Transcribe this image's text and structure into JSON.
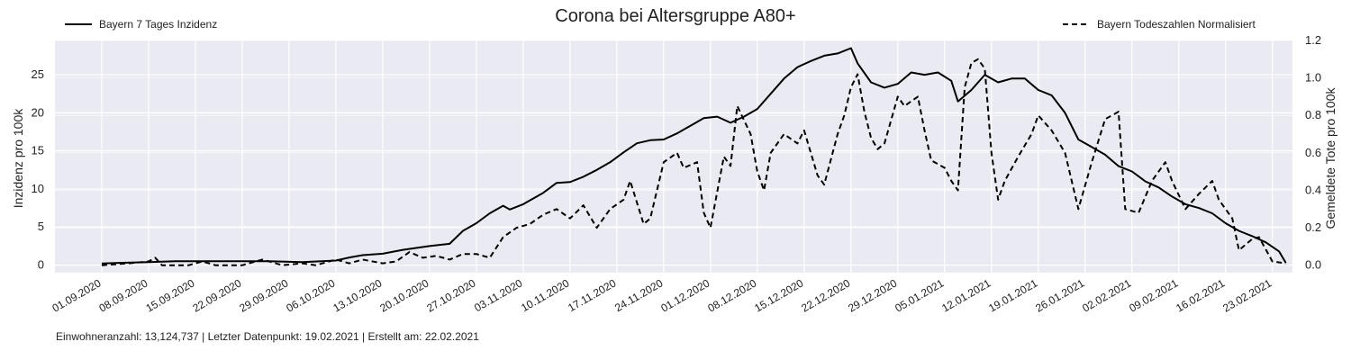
{
  "chart_data": {
    "type": "line",
    "title": "Corona bei Altersgruppe A80+",
    "ylabel": "Inzidenz pro 100k",
    "y2label": "Gemeldete Tote pro 100k",
    "xlim": [
      "2020-08-25",
      "2021-02-26"
    ],
    "ylim": [
      -1,
      29.5
    ],
    "y2lim": [
      -0.04,
      1.2
    ],
    "yticks": [
      0,
      5,
      10,
      15,
      20,
      25
    ],
    "y2ticks": [
      "0.0",
      "0.2",
      "0.4",
      "0.6",
      "0.8",
      "1.0",
      "1.2"
    ],
    "xticks": [
      "01.09.2020",
      "08.09.2020",
      "15.09.2020",
      "22.09.2020",
      "29.09.2020",
      "06.10.2020",
      "13.10.2020",
      "20.10.2020",
      "27.10.2020",
      "03.11.2020",
      "10.11.2020",
      "17.11.2020",
      "24.11.2020",
      "01.12.2020",
      "08.12.2020",
      "15.12.2020",
      "22.12.2020",
      "29.12.2020",
      "05.01.2021",
      "12.01.2021",
      "19.01.2021",
      "26.01.2021",
      "02.02.2021",
      "09.02.2021",
      "16.02.2021",
      "23.02.2021"
    ],
    "grid": true,
    "legend_left": "top-left",
    "legend_right": "top-right",
    "series": [
      {
        "name": "Bayern 7 Tages Inzidenz",
        "axis": "left",
        "style": "solid",
        "color": "#000000",
        "points": [
          [
            "2020-09-01",
            0.2
          ],
          [
            "2020-09-04",
            0.3
          ],
          [
            "2020-09-08",
            0.4
          ],
          [
            "2020-09-12",
            0.5
          ],
          [
            "2020-09-19",
            0.5
          ],
          [
            "2020-09-26",
            0.5
          ],
          [
            "2020-10-01",
            0.4
          ],
          [
            "2020-10-06",
            0.6
          ],
          [
            "2020-10-08",
            1.0
          ],
          [
            "2020-10-10",
            1.3
          ],
          [
            "2020-10-13",
            1.5
          ],
          [
            "2020-10-16",
            2.0
          ],
          [
            "2020-10-20",
            2.5
          ],
          [
            "2020-10-23",
            2.8
          ],
          [
            "2020-10-25",
            4.5
          ],
          [
            "2020-10-27",
            5.5
          ],
          [
            "2020-10-29",
            6.8
          ],
          [
            "2020-10-31",
            7.8
          ],
          [
            "2020-11-01",
            7.3
          ],
          [
            "2020-11-03",
            8.0
          ],
          [
            "2020-11-06",
            9.5
          ],
          [
            "2020-11-08",
            10.8
          ],
          [
            "2020-11-10",
            10.9
          ],
          [
            "2020-11-12",
            11.6
          ],
          [
            "2020-11-14",
            12.5
          ],
          [
            "2020-11-16",
            13.5
          ],
          [
            "2020-11-18",
            14.8
          ],
          [
            "2020-11-20",
            16.0
          ],
          [
            "2020-11-22",
            16.4
          ],
          [
            "2020-11-24",
            16.5
          ],
          [
            "2020-11-26",
            17.3
          ],
          [
            "2020-11-28",
            18.3
          ],
          [
            "2020-11-30",
            19.3
          ],
          [
            "2020-12-02",
            19.5
          ],
          [
            "2020-12-04",
            18.7
          ],
          [
            "2020-12-06",
            19.5
          ],
          [
            "2020-12-08",
            20.5
          ],
          [
            "2020-12-10",
            22.5
          ],
          [
            "2020-12-12",
            24.5
          ],
          [
            "2020-12-14",
            26.0
          ],
          [
            "2020-12-16",
            26.8
          ],
          [
            "2020-12-18",
            27.5
          ],
          [
            "2020-12-20",
            27.8
          ],
          [
            "2020-12-22",
            28.5
          ],
          [
            "2020-12-23",
            26.5
          ],
          [
            "2020-12-25",
            24.0
          ],
          [
            "2020-12-27",
            23.3
          ],
          [
            "2020-12-29",
            23.8
          ],
          [
            "2020-12-31",
            25.3
          ],
          [
            "2021-01-02",
            25.0
          ],
          [
            "2021-01-04",
            25.3
          ],
          [
            "2021-01-06",
            24.2
          ],
          [
            "2021-01-07",
            21.5
          ],
          [
            "2021-01-09",
            23.0
          ],
          [
            "2021-01-11",
            25.0
          ],
          [
            "2021-01-13",
            24.0
          ],
          [
            "2021-01-15",
            24.5
          ],
          [
            "2021-01-17",
            24.5
          ],
          [
            "2021-01-19",
            23.0
          ],
          [
            "2021-01-21",
            22.3
          ],
          [
            "2021-01-23",
            20.0
          ],
          [
            "2021-01-25",
            16.5
          ],
          [
            "2021-01-27",
            15.5
          ],
          [
            "2021-01-29",
            14.5
          ],
          [
            "2021-01-31",
            13.0
          ],
          [
            "2021-02-02",
            12.3
          ],
          [
            "2021-02-04",
            11.0
          ],
          [
            "2021-02-06",
            10.2
          ],
          [
            "2021-02-08",
            9.0
          ],
          [
            "2021-02-10",
            8.0
          ],
          [
            "2021-02-12",
            7.5
          ],
          [
            "2021-02-14",
            6.8
          ],
          [
            "2021-02-16",
            5.5
          ],
          [
            "2021-02-18",
            4.5
          ],
          [
            "2021-02-20",
            3.8
          ],
          [
            "2021-02-22",
            3.0
          ],
          [
            "2021-02-24",
            1.8
          ],
          [
            "2021-02-25",
            0.3
          ]
        ]
      },
      {
        "name": "Bayern Todeszahlen Normalisiert",
        "axis": "right",
        "style": "dashed",
        "color": "#000000",
        "points": [
          [
            "2020-09-01",
            0.0
          ],
          [
            "2020-09-05",
            0.01
          ],
          [
            "2020-09-08",
            0.02
          ],
          [
            "2020-09-09",
            0.04
          ],
          [
            "2020-09-10",
            0.0
          ],
          [
            "2020-09-14",
            0.0
          ],
          [
            "2020-09-16",
            0.02
          ],
          [
            "2020-09-18",
            0.0
          ],
          [
            "2020-09-22",
            0.0
          ],
          [
            "2020-09-25",
            0.03
          ],
          [
            "2020-09-28",
            0.0
          ],
          [
            "2020-10-01",
            0.01
          ],
          [
            "2020-10-03",
            0.0
          ],
          [
            "2020-10-06",
            0.03
          ],
          [
            "2020-10-08",
            0.01
          ],
          [
            "2020-10-10",
            0.03
          ],
          [
            "2020-10-13",
            0.01
          ],
          [
            "2020-10-15",
            0.02
          ],
          [
            "2020-10-17",
            0.07
          ],
          [
            "2020-10-19",
            0.04
          ],
          [
            "2020-10-21",
            0.05
          ],
          [
            "2020-10-23",
            0.03
          ],
          [
            "2020-10-25",
            0.06
          ],
          [
            "2020-10-27",
            0.06
          ],
          [
            "2020-10-29",
            0.04
          ],
          [
            "2020-10-31",
            0.15
          ],
          [
            "2020-11-02",
            0.2
          ],
          [
            "2020-11-04",
            0.22
          ],
          [
            "2020-11-06",
            0.27
          ],
          [
            "2020-11-08",
            0.3
          ],
          [
            "2020-11-10",
            0.25
          ],
          [
            "2020-11-12",
            0.32
          ],
          [
            "2020-11-14",
            0.2
          ],
          [
            "2020-11-16",
            0.3
          ],
          [
            "2020-11-18",
            0.35
          ],
          [
            "2020-11-19",
            0.45
          ],
          [
            "2020-11-21",
            0.22
          ],
          [
            "2020-11-22",
            0.25
          ],
          [
            "2020-11-24",
            0.55
          ],
          [
            "2020-11-26",
            0.6
          ],
          [
            "2020-11-27",
            0.52
          ],
          [
            "2020-11-29",
            0.55
          ],
          [
            "2020-11-30",
            0.28
          ],
          [
            "2020-12-01",
            0.2
          ],
          [
            "2020-12-03",
            0.58
          ],
          [
            "2020-12-04",
            0.53
          ],
          [
            "2020-12-05",
            0.85
          ],
          [
            "2020-12-07",
            0.7
          ],
          [
            "2020-12-08",
            0.5
          ],
          [
            "2020-12-09",
            0.4
          ],
          [
            "2020-12-10",
            0.6
          ],
          [
            "2020-12-12",
            0.7
          ],
          [
            "2020-12-14",
            0.65
          ],
          [
            "2020-12-15",
            0.72
          ],
          [
            "2020-12-17",
            0.48
          ],
          [
            "2020-12-18",
            0.43
          ],
          [
            "2020-12-20",
            0.7
          ],
          [
            "2020-12-21",
            0.8
          ],
          [
            "2020-12-22",
            0.95
          ],
          [
            "2020-12-23",
            1.02
          ],
          [
            "2020-12-24",
            0.82
          ],
          [
            "2020-12-25",
            0.68
          ],
          [
            "2020-12-26",
            0.62
          ],
          [
            "2020-12-27",
            0.65
          ],
          [
            "2020-12-29",
            0.9
          ],
          [
            "2020-12-30",
            0.85
          ],
          [
            "2021-01-01",
            0.9
          ],
          [
            "2021-01-02",
            0.72
          ],
          [
            "2021-01-03",
            0.56
          ],
          [
            "2021-01-05",
            0.52
          ],
          [
            "2021-01-06",
            0.45
          ],
          [
            "2021-01-07",
            0.4
          ],
          [
            "2021-01-08",
            0.95
          ],
          [
            "2021-01-09",
            1.08
          ],
          [
            "2021-01-10",
            1.1
          ],
          [
            "2021-01-11",
            1.05
          ],
          [
            "2021-01-12",
            0.6
          ],
          [
            "2021-01-13",
            0.35
          ],
          [
            "2021-01-14",
            0.45
          ],
          [
            "2021-01-16",
            0.58
          ],
          [
            "2021-01-18",
            0.7
          ],
          [
            "2021-01-19",
            0.8
          ],
          [
            "2021-01-21",
            0.72
          ],
          [
            "2021-01-23",
            0.6
          ],
          [
            "2021-01-25",
            0.3
          ],
          [
            "2021-01-27",
            0.55
          ],
          [
            "2021-01-29",
            0.78
          ],
          [
            "2021-01-31",
            0.82
          ],
          [
            "2021-02-01",
            0.3
          ],
          [
            "2021-02-03",
            0.28
          ],
          [
            "2021-02-05",
            0.45
          ],
          [
            "2021-02-07",
            0.55
          ],
          [
            "2021-02-08",
            0.45
          ],
          [
            "2021-02-10",
            0.3
          ],
          [
            "2021-02-12",
            0.38
          ],
          [
            "2021-02-14",
            0.45
          ],
          [
            "2021-02-15",
            0.35
          ],
          [
            "2021-02-17",
            0.25
          ],
          [
            "2021-02-18",
            0.08
          ],
          [
            "2021-02-20",
            0.14
          ],
          [
            "2021-02-21",
            0.15
          ],
          [
            "2021-02-23",
            0.02
          ],
          [
            "2021-02-25",
            0.01
          ]
        ]
      }
    ]
  },
  "footer": "Einwohneranzahl: 13,124,737 | Letzter Datenpunkt: 19.02.2021 | Erstellt am: 22.02.2021"
}
